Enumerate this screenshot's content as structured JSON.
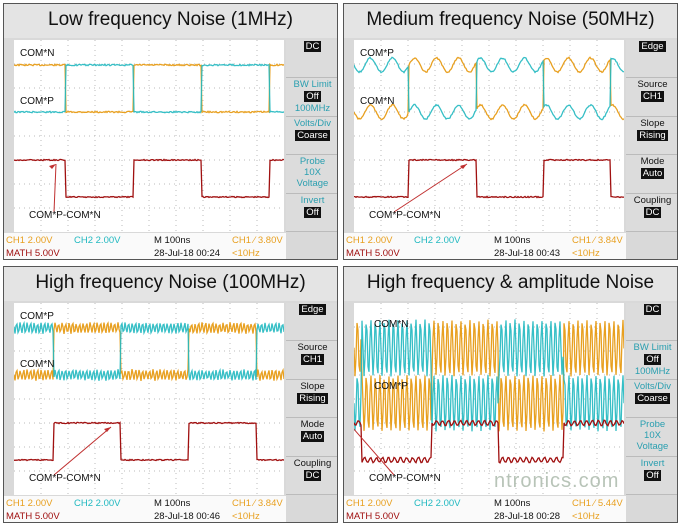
{
  "colors": {
    "ch1": "#e8a020",
    "ch2": "#20b8c0",
    "math": "#a01010",
    "menu_cyan": "#2a9fb0"
  },
  "panels": [
    {
      "title": "Low frequency Noise (1MHz)",
      "noise": "low",
      "top_first": "ch1",
      "math_first": "high",
      "transitions": [
        52,
        120,
        188,
        256
      ],
      "labels": {
        "top": "COM*N",
        "bottom": "COM*P",
        "math": "COM*P-COM*N"
      },
      "menu_color": "cyan",
      "menu": [
        {
          "lines": [],
          "value": "DC"
        },
        {
          "lines": [
            "BW Limit"
          ],
          "value": "Off",
          "extra": "100MHz"
        },
        {
          "lines": [
            "Volts/Div"
          ],
          "value": "Coarse"
        },
        {
          "lines": [
            "Probe",
            "10X",
            "Voltage"
          ]
        },
        {
          "lines": [
            "Invert"
          ],
          "value": "Off"
        }
      ],
      "status": {
        "ch1": "CH1  2.00V",
        "ch2": "CH2  2.00V",
        "time": "M 100ns",
        "trig": "CH1 ∕ 3.80V",
        "math": "MATH 5.00V",
        "date": "28-Jul-18 00:24",
        "freq": "<10Hz"
      }
    },
    {
      "title": "Medium frequency Noise (50MHz)",
      "noise": "sine",
      "top_first": "ch2",
      "math_first": "low",
      "transitions": [
        55,
        123,
        190,
        257
      ],
      "labels": {
        "top": "COM*P",
        "bottom": "COM*N",
        "math": "COM*P-COM*N"
      },
      "menu_color": "black",
      "menu": [
        {
          "lines": [],
          "value": "Edge"
        },
        {
          "lines": [
            "Source"
          ],
          "value": "CH1"
        },
        {
          "lines": [
            "Slope"
          ],
          "value": "Rising"
        },
        {
          "lines": [
            "Mode"
          ],
          "value": "Auto"
        },
        {
          "lines": [
            "Coupling"
          ],
          "value": "DC"
        }
      ],
      "status": {
        "ch1": "CH1  2.00V",
        "ch2": "CH2  2.00V",
        "time": "M 100ns",
        "trig": "CH1 ∕ 3.84V",
        "math": "MATH 5.00V",
        "date": "28-Jul-18 00:43",
        "freq": "<10Hz"
      }
    },
    {
      "title": "High frequency Noise (100MHz)",
      "noise": "hf",
      "top_first": "ch2",
      "math_first": "low",
      "transitions": [
        40,
        107,
        175,
        243
      ],
      "labels": {
        "top": "COM*P",
        "bottom": "COM*N",
        "math": "COM*P-COM*N"
      },
      "menu_color": "black",
      "menu": [
        {
          "lines": [],
          "value": "Edge"
        },
        {
          "lines": [
            "Source"
          ],
          "value": "CH1"
        },
        {
          "lines": [
            "Slope"
          ],
          "value": "Rising"
        },
        {
          "lines": [
            "Mode"
          ],
          "value": "Auto"
        },
        {
          "lines": [
            "Coupling"
          ],
          "value": "DC"
        }
      ],
      "status": {
        "ch1": "CH1  2.00V",
        "ch2": "CH2  2.00V",
        "time": "M 100ns",
        "trig": "CH1 ∕ 3.84V",
        "math": "MATH 5.00V",
        "date": "28-Jul-18 00:46",
        "freq": "<10Hz"
      }
    },
    {
      "title": "High frequency & amplitude Noise",
      "noise": "hfamp",
      "top_first": "ch1",
      "math_first": "high",
      "transitions": [
        8,
        78,
        145,
        210
      ],
      "labels": {
        "top": "COM*N",
        "bottom": "COM*P",
        "math": "COM*P-COM*N"
      },
      "menu_color": "cyan",
      "menu": [
        {
          "lines": [],
          "value": "DC"
        },
        {
          "lines": [
            "BW Limit"
          ],
          "value": "Off",
          "extra": "100MHz"
        },
        {
          "lines": [
            "Volts/Div"
          ],
          "value": "Coarse"
        },
        {
          "lines": [
            "Probe",
            "10X",
            "Voltage"
          ]
        },
        {
          "lines": [
            "Invert"
          ],
          "value": "Off"
        }
      ],
      "status": {
        "ch1": "CH1  2.00V",
        "ch2": "CH2  2.00V",
        "time": "M 100ns",
        "trig": "CH1 ∕ 5.44V",
        "math": "MATH 5.00V",
        "date": "28-Jul-18 00:28",
        "freq": "<10Hz"
      },
      "watermark": "ntronics.com"
    }
  ]
}
